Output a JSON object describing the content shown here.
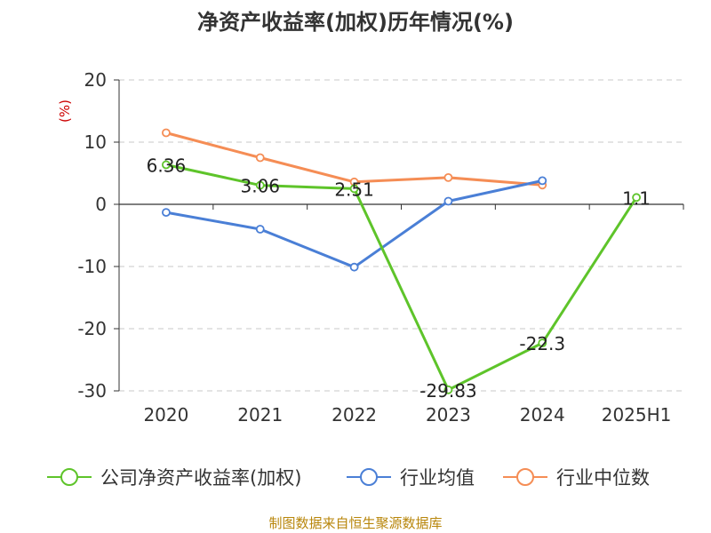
{
  "chart_data": {
    "type": "line",
    "title": "净资产收益率(加权)历年情况(%)",
    "ylabel": "(%)",
    "categories": [
      "2020",
      "2021",
      "2022",
      "2023",
      "2024",
      "2025H1"
    ],
    "ylim": [
      -30,
      20
    ],
    "yticks": [
      20,
      10,
      0,
      -10,
      -20,
      -30
    ],
    "grid": true,
    "legend_position": "bottom",
    "series": [
      {
        "name": "公司净资产收益率(加权)",
        "color": "#5ec42a",
        "values": [
          6.36,
          3.06,
          2.51,
          -29.83,
          -22.3,
          1.1
        ],
        "labels": [
          "6.36",
          "3.06",
          "2.51",
          "-29.83",
          "-22.3",
          "1.1"
        ]
      },
      {
        "name": "行业均值",
        "color": "#4a7fd6",
        "values": [
          -1.3,
          -4.0,
          -10.1,
          0.5,
          3.8,
          null
        ]
      },
      {
        "name": "行业中位数",
        "color": "#f58d55",
        "values": [
          11.5,
          7.5,
          3.6,
          4.3,
          3.1,
          null
        ]
      }
    ],
    "source": "制图数据来自恒生聚源数据库"
  }
}
